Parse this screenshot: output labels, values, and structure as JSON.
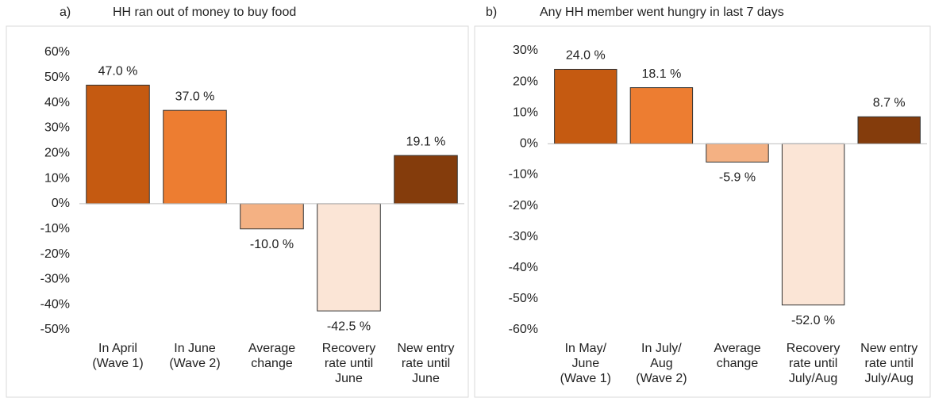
{
  "chart_data": [
    {
      "type": "bar",
      "panel": "a)",
      "title": "HH ran out of money to buy food",
      "categories": [
        "In April\n(Wave 1)",
        "In June\n(Wave 2)",
        "Average\nchange",
        "Recovery\nrate until\nJune",
        "New entry\nrate until\nJune"
      ],
      "values": [
        47.0,
        37.0,
        -10.0,
        -42.5,
        19.1
      ],
      "value_labels": [
        "47.0 %",
        "37.0 %",
        "-10.0 %",
        "-42.5 %",
        "19.1 %"
      ],
      "colors": [
        "#c55a11",
        "#ed7d31",
        "#f4b183",
        "#fbe5d6",
        "#843c0c"
      ],
      "ylim": [
        -50,
        60
      ],
      "yticks": [
        {
          "value": 60,
          "label": "60%"
        },
        {
          "value": 50,
          "label": "50%"
        },
        {
          "value": 40,
          "label": "40%"
        },
        {
          "value": 30,
          "label": "30%"
        },
        {
          "value": 20,
          "label": "20%"
        },
        {
          "value": 10,
          "label": "10%"
        },
        {
          "value": 0,
          "label": "0%"
        },
        {
          "value": -10,
          "label": "-10%"
        },
        {
          "value": -20,
          "label": "-20%"
        },
        {
          "value": -30,
          "label": "-30%"
        },
        {
          "value": -40,
          "label": "-40%"
        },
        {
          "value": -50,
          "label": "-50%"
        }
      ]
    },
    {
      "type": "bar",
      "panel": "b)",
      "title": "Any HH member went hungry in last 7 days",
      "categories": [
        "In May/\nJune\n(Wave 1)",
        "In July/\nAug\n(Wave 2)",
        "Average\nchange",
        "Recovery\nrate until\nJuly/Aug",
        "New entry\nrate until\nJuly/Aug"
      ],
      "values": [
        24.0,
        18.1,
        -5.9,
        -52.0,
        8.7
      ],
      "value_labels": [
        "24.0 %",
        "18.1 %",
        "-5.9 %",
        "-52.0 %",
        "8.7 %"
      ],
      "colors": [
        "#c55a11",
        "#ed7d31",
        "#f4b183",
        "#fbe5d6",
        "#843c0c"
      ],
      "ylim": [
        -60,
        30
      ],
      "yticks": [
        {
          "value": 30,
          "label": "30%"
        },
        {
          "value": 20,
          "label": "20%"
        },
        {
          "value": 10,
          "label": "10%"
        },
        {
          "value": 0,
          "label": "0%"
        },
        {
          "value": -10,
          "label": "-10%"
        },
        {
          "value": -20,
          "label": "-20%"
        },
        {
          "value": -30,
          "label": "-30%"
        },
        {
          "value": -40,
          "label": "-40%"
        },
        {
          "value": -50,
          "label": "-50%"
        },
        {
          "value": -60,
          "label": "-60%"
        }
      ]
    }
  ]
}
